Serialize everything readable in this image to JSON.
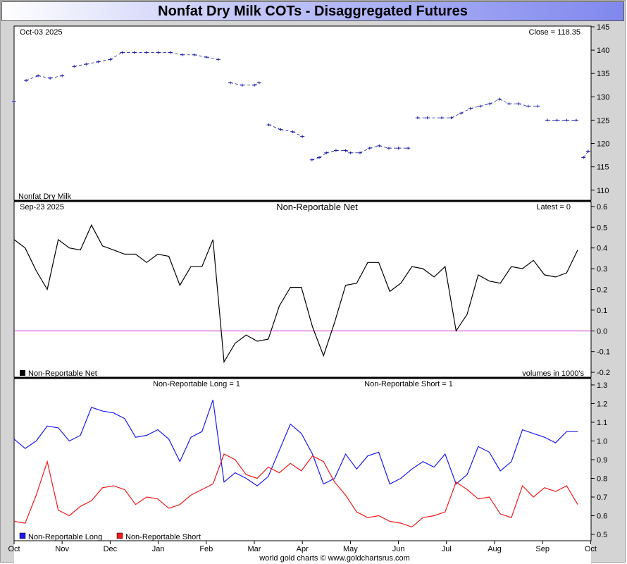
{
  "title": "Nonfat Dry Milk COTs - Disaggregated Futures",
  "credit": "world gold charts © www.goldchartsrus.com",
  "colors": {
    "price": "#1a1aa8",
    "net": "#000000",
    "zero_line": "#cc33cc",
    "long": "#1a1aee",
    "short": "#ee1a1a"
  },
  "months": [
    "Oct",
    "Nov",
    "Dec",
    "Jan",
    "Feb",
    "Mar",
    "Apr",
    "May",
    "Jun",
    "Jul",
    "Aug",
    "Sep",
    "Oct"
  ],
  "price_panel": {
    "date_label": "Oct-03  2025",
    "close_label": "Close = 118.35",
    "series_label": "Nonfat Dry Milk",
    "yticks": [
      "145",
      "140",
      "135",
      "130",
      "125",
      "120",
      "115",
      "110"
    ]
  },
  "net_panel": {
    "date_label": "Sep-23  2025",
    "title": "Non-Reportable Net",
    "latest_label": "Latest = 0",
    "legend": "Non-Reportable Net",
    "note": "volumes in 1000's",
    "yticks": [
      "0.6",
      "0.5",
      "0.4",
      "0.3",
      "0.2",
      "0.1",
      "0.0",
      "-0.1",
      "-0.2"
    ]
  },
  "ls_panel": {
    "long_title": "Non-Reportable Long = 1",
    "short_title": "Non-Reportable Short = 1",
    "legend_long": "Non-Reportable Long",
    "legend_short": "Non-Reportable Short",
    "yticks": [
      "1.3",
      "1.2",
      "1.1",
      "1.0",
      "0.9",
      "0.8",
      "0.7",
      "0.6",
      "0.5"
    ]
  },
  "chart_data": [
    {
      "type": "line",
      "title": "",
      "series": [
        {
          "name": "Nonfat Dry Milk",
          "x_months": [
            0.0,
            0.25,
            0.5,
            0.75,
            1.0,
            1.25,
            1.5,
            1.75,
            2.0,
            2.25,
            2.5,
            2.75,
            3.0,
            3.25,
            3.5,
            3.75,
            4.0,
            4.25,
            4.5,
            4.75,
            5.0,
            5.1,
            5.3,
            5.55,
            5.8,
            6.0,
            6.2,
            6.35,
            6.5,
            6.7,
            6.9,
            7.0,
            7.2,
            7.4,
            7.6,
            7.8,
            8.0,
            8.2,
            8.4,
            8.6,
            8.9,
            9.1,
            9.3,
            9.5,
            9.7,
            9.9,
            10.1,
            10.3,
            10.5,
            10.7,
            10.9,
            11.1,
            11.3,
            11.5,
            11.7,
            11.85,
            11.95
          ],
          "values": [
            129,
            133.5,
            134.5,
            134,
            134.5,
            136.5,
            137,
            137.5,
            138,
            139.5,
            139.5,
            139.5,
            139.5,
            139.5,
            139,
            139,
            138.5,
            138,
            133,
            132.5,
            132.5,
            133,
            124,
            123,
            122.5,
            121.5,
            116.5,
            117,
            118,
            118.5,
            118.5,
            118,
            118,
            119,
            119.5,
            119,
            119,
            119,
            125.5,
            125.5,
            125.5,
            125.5,
            126.5,
            127.5,
            128,
            128.5,
            129.5,
            128.5,
            128.5,
            128,
            128,
            125,
            125,
            125,
            125,
            117,
            118.35
          ]
        }
      ],
      "ylim": [
        108,
        145
      ]
    },
    {
      "type": "line",
      "title": "Non-Reportable Net",
      "series": [
        {
          "name": "Non-Reportable Net",
          "x_months": [
            0.0,
            0.23,
            0.46,
            0.69,
            0.92,
            1.15,
            1.38,
            1.61,
            1.84,
            2.07,
            2.3,
            2.53,
            2.76,
            2.99,
            3.22,
            3.45,
            3.68,
            3.91,
            4.14,
            4.37,
            4.6,
            4.83,
            5.06,
            5.29,
            5.52,
            5.75,
            5.98,
            6.21,
            6.44,
            6.67,
            6.9,
            7.13,
            7.36,
            7.59,
            7.82,
            8.05,
            8.28,
            8.51,
            8.74,
            8.97,
            9.2,
            9.43,
            9.66,
            9.89,
            10.12,
            10.35,
            10.58,
            10.81,
            11.04,
            11.27,
            11.5,
            11.73
          ],
          "values": [
            0.44,
            0.4,
            0.29,
            0.2,
            0.44,
            0.4,
            0.39,
            0.51,
            0.41,
            0.39,
            0.37,
            0.37,
            0.33,
            0.37,
            0.36,
            0.22,
            0.31,
            0.31,
            0.44,
            -0.15,
            -0.06,
            -0.02,
            -0.05,
            -0.04,
            0.12,
            0.21,
            0.21,
            0.02,
            -0.12,
            0.04,
            0.22,
            0.23,
            0.33,
            0.33,
            0.19,
            0.23,
            0.31,
            0.3,
            0.26,
            0.31,
            0.0,
            0.08,
            0.27,
            0.24,
            0.23,
            0.31,
            0.3,
            0.34,
            0.27,
            0.26,
            0.28,
            0.39
          ]
        }
      ],
      "ylim": [
        -0.22,
        0.62
      ]
    },
    {
      "type": "line",
      "title": "",
      "series": [
        {
          "name": "Non-Reportable Long",
          "x_months": [
            0.0,
            0.23,
            0.46,
            0.69,
            0.92,
            1.15,
            1.38,
            1.61,
            1.84,
            2.07,
            2.3,
            2.53,
            2.76,
            2.99,
            3.22,
            3.45,
            3.68,
            3.91,
            4.14,
            4.37,
            4.6,
            4.83,
            5.06,
            5.29,
            5.52,
            5.75,
            5.98,
            6.21,
            6.44,
            6.67,
            6.9,
            7.13,
            7.36,
            7.59,
            7.82,
            8.05,
            8.28,
            8.51,
            8.74,
            8.97,
            9.2,
            9.43,
            9.66,
            9.89,
            10.12,
            10.35,
            10.58,
            10.81,
            11.04,
            11.27,
            11.5,
            11.73
          ],
          "values": [
            1.01,
            0.96,
            1.0,
            1.08,
            1.07,
            1.0,
            1.03,
            1.18,
            1.16,
            1.15,
            1.12,
            1.02,
            1.03,
            1.06,
            1.01,
            0.89,
            1.02,
            1.05,
            1.22,
            0.78,
            0.83,
            0.8,
            0.76,
            0.81,
            0.95,
            1.09,
            1.04,
            0.93,
            0.77,
            0.8,
            0.93,
            0.85,
            0.92,
            0.94,
            0.77,
            0.8,
            0.85,
            0.89,
            0.86,
            0.93,
            0.77,
            0.82,
            0.97,
            0.94,
            0.84,
            0.89,
            1.06,
            1.04,
            1.02,
            0.99,
            1.05,
            1.05
          ]
        },
        {
          "name": "Non-Reportable Short",
          "x_months": [
            0.0,
            0.23,
            0.46,
            0.69,
            0.92,
            1.15,
            1.38,
            1.61,
            1.84,
            2.07,
            2.3,
            2.53,
            2.76,
            2.99,
            3.22,
            3.45,
            3.68,
            3.91,
            4.14,
            4.37,
            4.6,
            4.83,
            5.06,
            5.29,
            5.52,
            5.75,
            5.98,
            6.21,
            6.44,
            6.67,
            6.9,
            7.13,
            7.36,
            7.59,
            7.82,
            8.05,
            8.28,
            8.51,
            8.74,
            8.97,
            9.2,
            9.43,
            9.66,
            9.89,
            10.12,
            10.35,
            10.58,
            10.81,
            11.04,
            11.27,
            11.5,
            11.73
          ],
          "values": [
            0.57,
            0.56,
            0.71,
            0.89,
            0.63,
            0.6,
            0.65,
            0.68,
            0.75,
            0.76,
            0.74,
            0.66,
            0.7,
            0.69,
            0.64,
            0.66,
            0.71,
            0.74,
            0.77,
            0.93,
            0.9,
            0.82,
            0.8,
            0.86,
            0.83,
            0.88,
            0.84,
            0.92,
            0.89,
            0.78,
            0.71,
            0.62,
            0.59,
            0.6,
            0.57,
            0.56,
            0.54,
            0.59,
            0.6,
            0.62,
            0.78,
            0.74,
            0.69,
            0.7,
            0.61,
            0.59,
            0.76,
            0.7,
            0.75,
            0.73,
            0.76,
            0.66
          ]
        }
      ],
      "ylim": [
        0.47,
        1.33
      ]
    }
  ]
}
